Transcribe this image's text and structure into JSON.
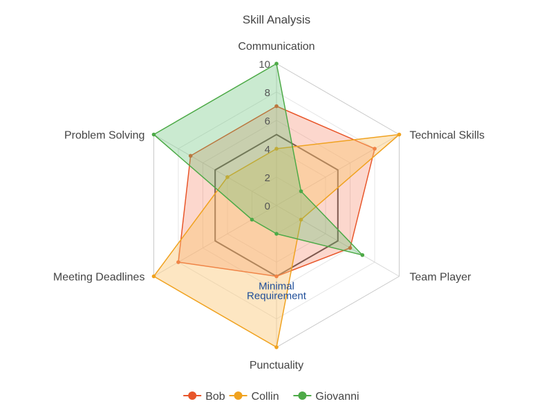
{
  "chart_data": {
    "type": "radar",
    "title": "Skill Analysis",
    "axes": [
      "Communication",
      "Technical Skills",
      "Team Player",
      "Punctuality",
      "Meeting Deadlines",
      "Problem Solving"
    ],
    "range": [
      0,
      10
    ],
    "ticks": [
      0,
      2,
      4,
      6,
      8,
      10
    ],
    "tick_labels": [
      "0",
      "2",
      "4",
      "6",
      "8",
      "10"
    ],
    "grid": true,
    "legend_position": "bottom",
    "series": [
      {
        "name": "Bob",
        "values": [
          7,
          8,
          6,
          5,
          8,
          7
        ],
        "color": "#e8562a",
        "fill": "rgba(245,130,100,0.32)"
      },
      {
        "name": "Collin",
        "values": [
          4,
          10,
          2,
          10,
          10,
          4
        ],
        "color": "#f0a21f",
        "fill": "rgba(250,195,110,0.42)"
      },
      {
        "name": "Giovanni",
        "values": [
          10,
          2,
          7,
          2,
          2,
          10
        ],
        "color": "#4daa47",
        "fill": "rgba(90,190,110,0.32)"
      }
    ],
    "reference": {
      "value": 5,
      "label_line1": "Minimal",
      "label_line2": "Requirement",
      "color": "#444444"
    }
  }
}
